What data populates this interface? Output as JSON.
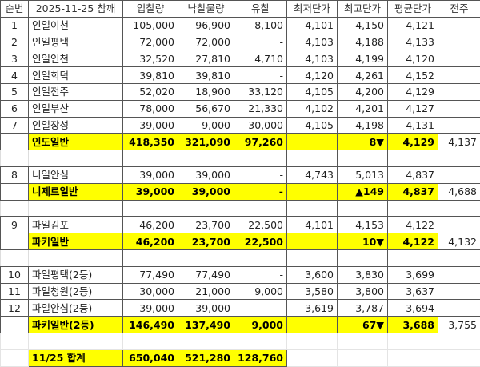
{
  "colors": {
    "highlight": "#ffff00",
    "down": "#1010e0",
    "up": "#e01010"
  },
  "header": [
    "순번",
    "2025-11-25 참깨",
    "입찰량",
    "낙찰물량",
    "유찰",
    "최저단가",
    "최고단가",
    "평균단가",
    "전주"
  ],
  "rows": [
    {
      "type": "item",
      "no": "1",
      "name": "인일이천",
      "bid": "105,000",
      "won": "96,900",
      "fail": "8,100",
      "min": "4,101",
      "max": "4,150",
      "avg": "4,121"
    },
    {
      "type": "item",
      "no": "2",
      "name": "인일평택",
      "bid": "72,000",
      "won": "72,000",
      "fail": "-",
      "min": "4,103",
      "max": "4,188",
      "avg": "4,133"
    },
    {
      "type": "item",
      "no": "3",
      "name": "인일인천",
      "bid": "32,520",
      "won": "27,810",
      "fail": "4,710",
      "min": "4,103",
      "max": "4,199",
      "avg": "4,120"
    },
    {
      "type": "item",
      "no": "4",
      "name": "인일회덕",
      "bid": "39,810",
      "won": "39,810",
      "fail": "-",
      "min": "4,120",
      "max": "4,261",
      "avg": "4,152"
    },
    {
      "type": "item",
      "no": "5",
      "name": "인일전주",
      "bid": "52,020",
      "won": "18,900",
      "fail": "33,120",
      "min": "4,105",
      "max": "4,200",
      "avg": "4,129"
    },
    {
      "type": "item",
      "no": "6",
      "name": "인일부산",
      "bid": "78,000",
      "won": "56,670",
      "fail": "21,330",
      "min": "4,102",
      "max": "4,201",
      "avg": "4,127"
    },
    {
      "type": "item",
      "no": "7",
      "name": "인일장성",
      "bid": "39,000",
      "won": "9,000",
      "fail": "30,000",
      "min": "4,105",
      "max": "4,198",
      "avg": "4,131"
    },
    {
      "type": "subtotal",
      "name": "인도일반",
      "bid": "418,350",
      "won": "321,090",
      "fail": "97,260",
      "change": "8",
      "direction": "down",
      "arrow": "▼",
      "avg": "4,129",
      "prev": "4,137"
    },
    {
      "type": "blank"
    },
    {
      "type": "item",
      "no": "8",
      "name": "니일안심",
      "bid": "39,000",
      "won": "39,000",
      "fail": "-",
      "min": "4,743",
      "max": "5,013",
      "avg": "4,837"
    },
    {
      "type": "subtotal",
      "name": "니제르일반",
      "bid": "39,000",
      "won": "39,000",
      "fail": "-",
      "change": "149",
      "direction": "up",
      "arrow": "▲",
      "avg": "4,837",
      "prev": "4,688"
    },
    {
      "type": "blank"
    },
    {
      "type": "item",
      "no": "9",
      "name": "파일김포",
      "bid": "46,200",
      "won": "23,700",
      "fail": "22,500",
      "min": "4,101",
      "max": "4,153",
      "avg": "4,122"
    },
    {
      "type": "subtotal",
      "name": "파키일반",
      "bid": "46,200",
      "won": "23,700",
      "fail": "22,500",
      "change": "10",
      "direction": "down",
      "arrow": "▼",
      "avg": "4,122",
      "prev": "4,132"
    },
    {
      "type": "blank"
    },
    {
      "type": "item",
      "no": "10",
      "name": "파일평택(2등)",
      "bid": "77,490",
      "won": "77,490",
      "fail": "-",
      "min": "3,600",
      "max": "3,830",
      "avg": "3,699"
    },
    {
      "type": "item",
      "no": "11",
      "name": "파일청원(2등)",
      "bid": "30,000",
      "won": "21,000",
      "fail": "9,000",
      "min": "3,580",
      "max": "3,800",
      "avg": "3,637"
    },
    {
      "type": "item",
      "no": "12",
      "name": "파일안심(2등)",
      "bid": "39,000",
      "won": "39,000",
      "fail": "-",
      "min": "3,619",
      "max": "3,787",
      "avg": "3,694"
    },
    {
      "type": "subtotal",
      "name": "파키일반(2등)",
      "bid": "146,490",
      "won": "137,490",
      "fail": "9,000",
      "change": "67",
      "direction": "down",
      "arrow": "▼",
      "avg": "3,688",
      "prev": "3,755"
    },
    {
      "type": "blank2"
    },
    {
      "type": "total",
      "name": "11/25 합계",
      "bid": "650,040",
      "won": "521,280",
      "fail": "128,760"
    }
  ]
}
